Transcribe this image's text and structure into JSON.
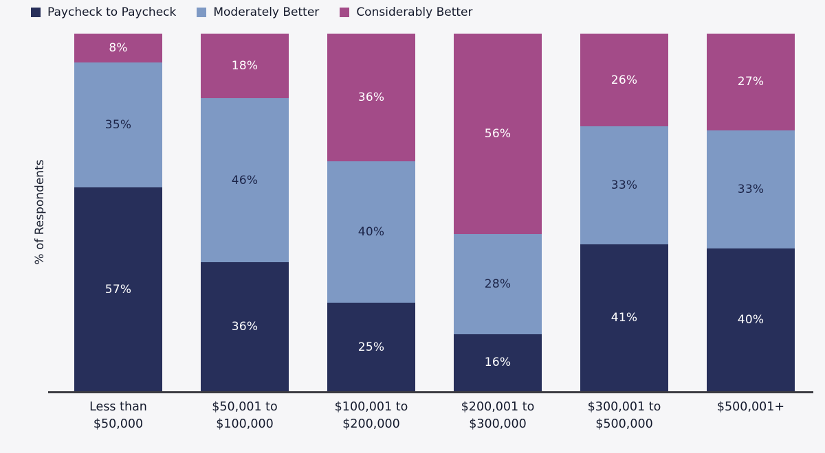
{
  "page": {
    "background_color": "#f6f6f8",
    "axis_line_color": "#3c3c42",
    "text_color": "#14192b"
  },
  "chart_data": {
    "type": "bar",
    "stacked": true,
    "orientation": "vertical",
    "title": "",
    "xlabel": "",
    "ylabel": "% of Respondents",
    "value_suffix": "%",
    "grid": false,
    "legend_position": "top-left",
    "ylim": [
      0,
      100
    ],
    "categories": [
      [
        "Less than",
        "$50,000"
      ],
      [
        "$50,001 to",
        "$100,000"
      ],
      [
        "$100,001 to",
        "$200,000"
      ],
      [
        "$200,001 to",
        "$300,000"
      ],
      [
        "$300,001 to",
        "$500,000"
      ],
      [
        "$500,001+"
      ]
    ],
    "series": [
      {
        "name": "Paycheck to Paycheck",
        "color": "#272f5a",
        "label_color": "#ffffff",
        "values": [
          57,
          36,
          25,
          16,
          41,
          40
        ]
      },
      {
        "name": "Moderately Better",
        "color": "#7e99c4",
        "label_color": "#1b2347",
        "values": [
          35,
          46,
          40,
          28,
          33,
          33
        ]
      },
      {
        "name": "Considerably Better",
        "color": "#a34b88",
        "label_color": "#ffffff",
        "values": [
          8,
          18,
          36,
          56,
          26,
          27
        ]
      }
    ]
  }
}
